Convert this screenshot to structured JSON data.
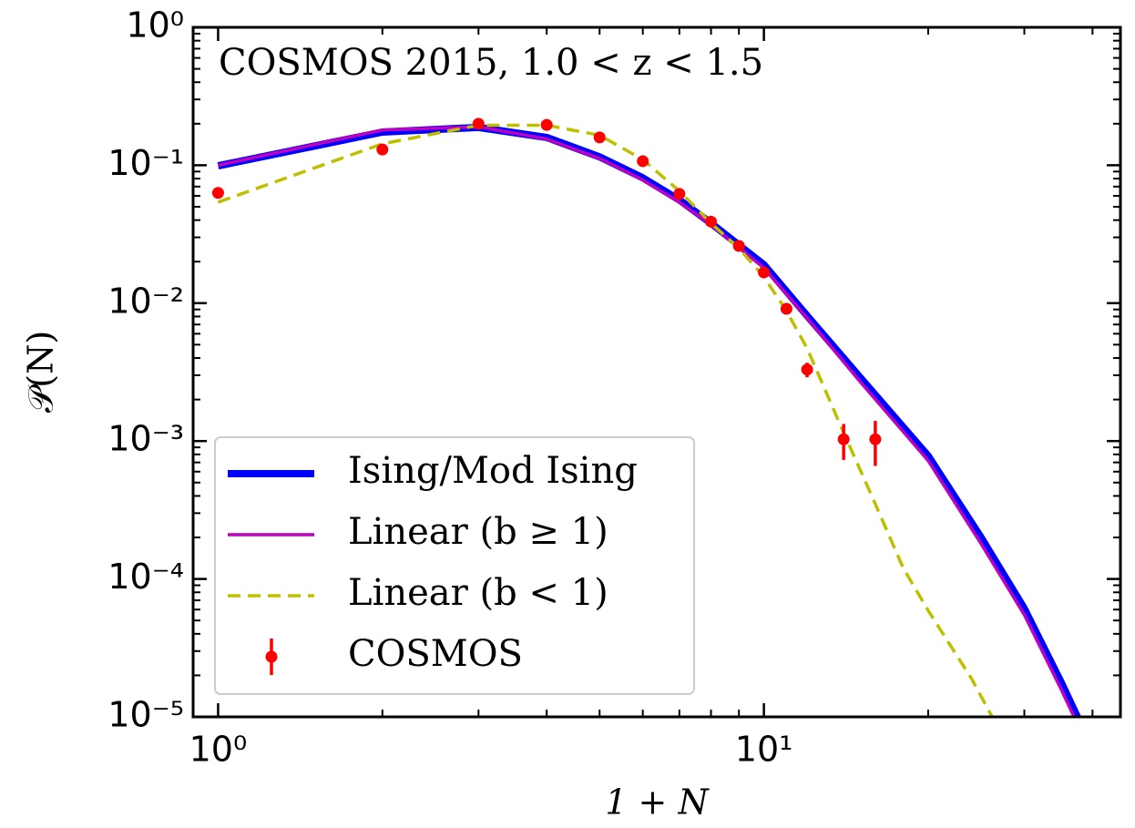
{
  "chart_data": {
    "type": "line",
    "annotation": "COSMOS 2015, 1.0 < z < 1.5",
    "x_label": "1 + N",
    "y_label": "𝒫(N)",
    "xscale": "log",
    "yscale": "log",
    "xlim": [
      0.9,
      45
    ],
    "ylim": [
      1e-05,
      1
    ],
    "xticks": [
      {
        "value": 1,
        "label": "10⁰"
      },
      {
        "value": 10,
        "label": "10¹"
      }
    ],
    "yticks": [
      {
        "value": 1,
        "label": "10⁰"
      },
      {
        "value": 0.1,
        "label": "10⁻¹"
      },
      {
        "value": 0.01,
        "label": "10⁻²"
      },
      {
        "value": 0.001,
        "label": "10⁻³"
      },
      {
        "value": 0.0001,
        "label": "10⁻⁴"
      },
      {
        "value": 1e-05,
        "label": "10⁻⁵"
      }
    ],
    "legend": "lower left",
    "series": [
      {
        "name": "Ising/Mod Ising",
        "color": "#0000ff",
        "style": "solid-thick",
        "x": [
          1,
          2,
          3,
          4,
          5,
          6,
          7,
          8,
          10,
          12,
          15,
          20,
          25,
          30,
          35,
          38
        ],
        "values": [
          0.099,
          0.174,
          0.188,
          0.159,
          0.115,
          0.081,
          0.056,
          0.038,
          0.019,
          0.0081,
          0.0029,
          0.00078,
          0.0002,
          6.1e-05,
          1.8e-05,
          9e-06
        ]
      },
      {
        "name": "Linear (b ≥ 1)",
        "color": "#bf00bf",
        "style": "solid",
        "x": [
          1,
          2,
          3,
          4,
          5,
          6,
          7,
          8,
          10,
          12,
          15,
          20,
          25,
          30,
          35,
          38
        ],
        "values": [
          0.1,
          0.18,
          0.19,
          0.155,
          0.112,
          0.078,
          0.054,
          0.037,
          0.018,
          0.0078,
          0.0027,
          0.00072,
          0.00018,
          5.5e-05,
          1.6e-05,
          8e-06
        ]
      },
      {
        "name": "Linear (b < 1)",
        "color": "#bfbf00",
        "style": "dashed",
        "x": [
          1,
          2,
          3,
          4,
          5,
          6,
          7,
          8,
          9,
          10,
          11,
          12,
          14,
          16,
          18,
          20,
          24,
          27
        ],
        "values": [
          0.054,
          0.143,
          0.195,
          0.195,
          0.165,
          0.11,
          0.065,
          0.038,
          0.025,
          0.0155,
          0.0088,
          0.0047,
          0.00115,
          0.00035,
          0.00012,
          5.9e-05,
          1.9e-05,
          8e-06
        ]
      },
      {
        "name": "COSMOS",
        "color": "#ff0000",
        "style": "errorbar",
        "x": [
          1,
          2,
          3,
          4,
          5,
          6,
          7,
          8,
          9,
          10,
          11,
          12,
          14,
          16
        ],
        "values": [
          0.063,
          0.13,
          0.2,
          0.196,
          0.159,
          0.107,
          0.062,
          0.039,
          0.026,
          0.0167,
          0.0091,
          0.0033,
          0.00103,
          0.00103
        ],
        "errors": [
          0.002,
          0.003,
          0.004,
          0.004,
          0.003,
          0.003,
          0.002,
          0.0015,
          0.001,
          0.0008,
          0.0006,
          0.0004,
          0.0003,
          0.00037
        ]
      }
    ]
  }
}
